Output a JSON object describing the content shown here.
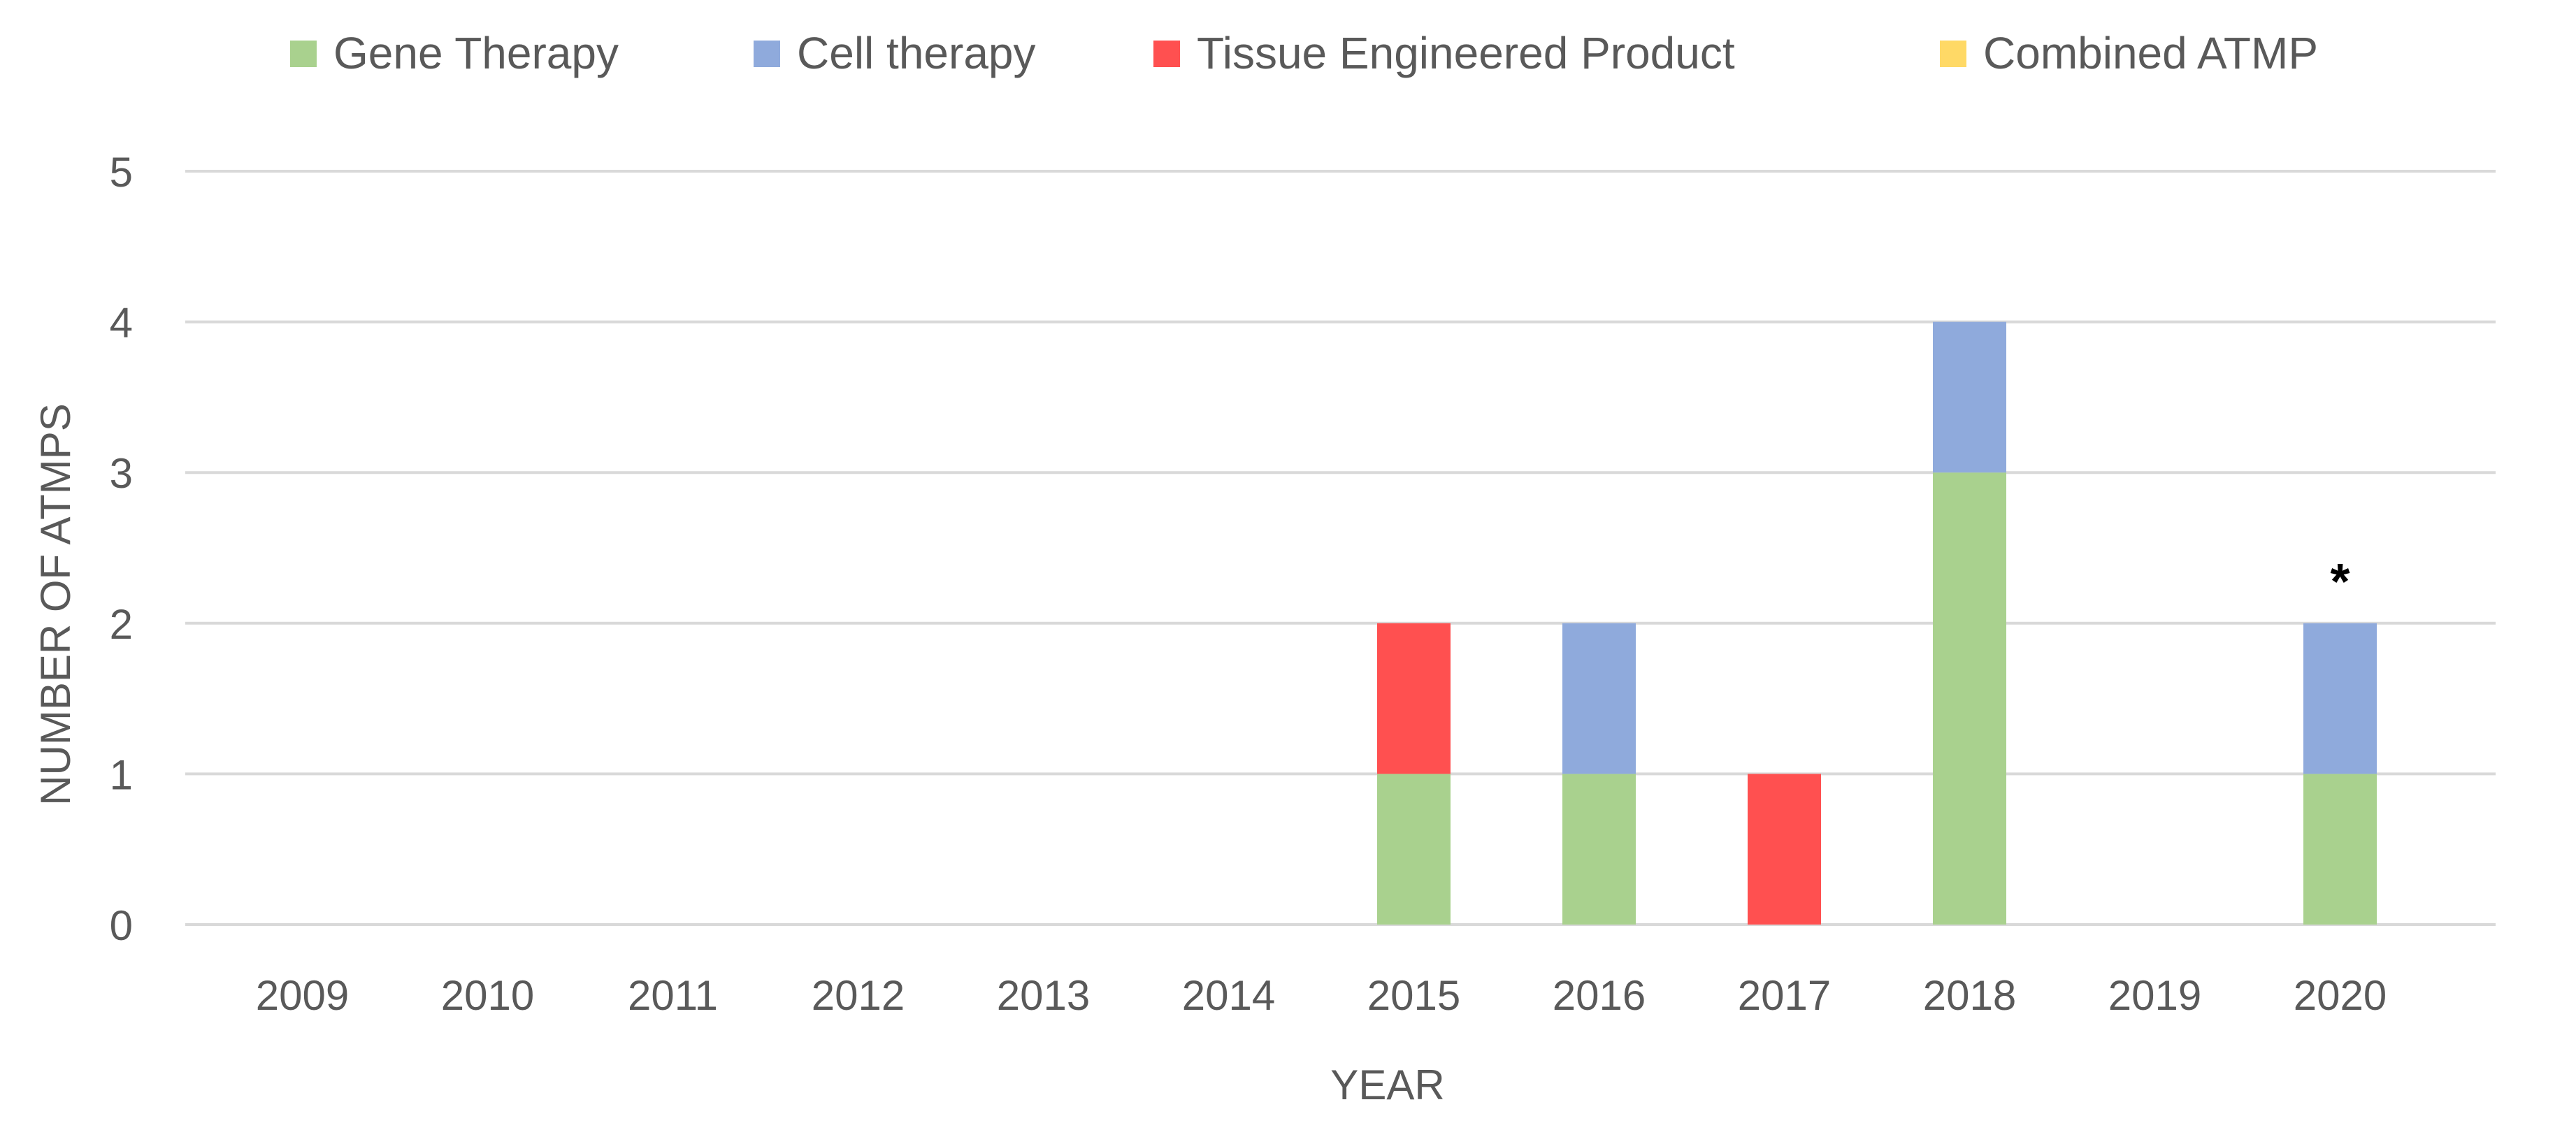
{
  "chart_data": {
    "type": "bar",
    "stacked": true,
    "title": "",
    "xlabel": "YEAR",
    "ylabel": "NUMBER OF ATMPS",
    "ylim": [
      0,
      5
    ],
    "yticks": [
      0,
      1,
      2,
      3,
      4,
      5
    ],
    "grid": "horizontal",
    "legend_position": "top",
    "categories": [
      "2009",
      "2010",
      "2011",
      "2012",
      "2013",
      "2014",
      "2015",
      "2016",
      "2017",
      "2018",
      "2019",
      "2020"
    ],
    "series": [
      {
        "name": "Gene Therapy",
        "color": "#a9d18e",
        "values": [
          0,
          0,
          0,
          0,
          0,
          0,
          1,
          1,
          0,
          3,
          0,
          1
        ]
      },
      {
        "name": "Cell therapy",
        "color": "#8faadc",
        "values": [
          0,
          0,
          0,
          0,
          0,
          0,
          0,
          1,
          0,
          1,
          0,
          1
        ]
      },
      {
        "name": "Tissue Engineered Product",
        "color": "#ff5050",
        "values": [
          0,
          0,
          0,
          0,
          0,
          0,
          1,
          0,
          1,
          0,
          0,
          0
        ]
      },
      {
        "name": "Combined ATMP",
        "color": "#ffd966",
        "values": [
          0,
          0,
          0,
          0,
          0,
          0,
          0,
          0,
          0,
          0,
          0,
          0
        ]
      }
    ],
    "annotations": [
      {
        "category": "2020",
        "text": "*"
      }
    ]
  },
  "colors": {
    "grid": "#d9d9d9",
    "text": "#595959",
    "annotation": "#000000"
  }
}
